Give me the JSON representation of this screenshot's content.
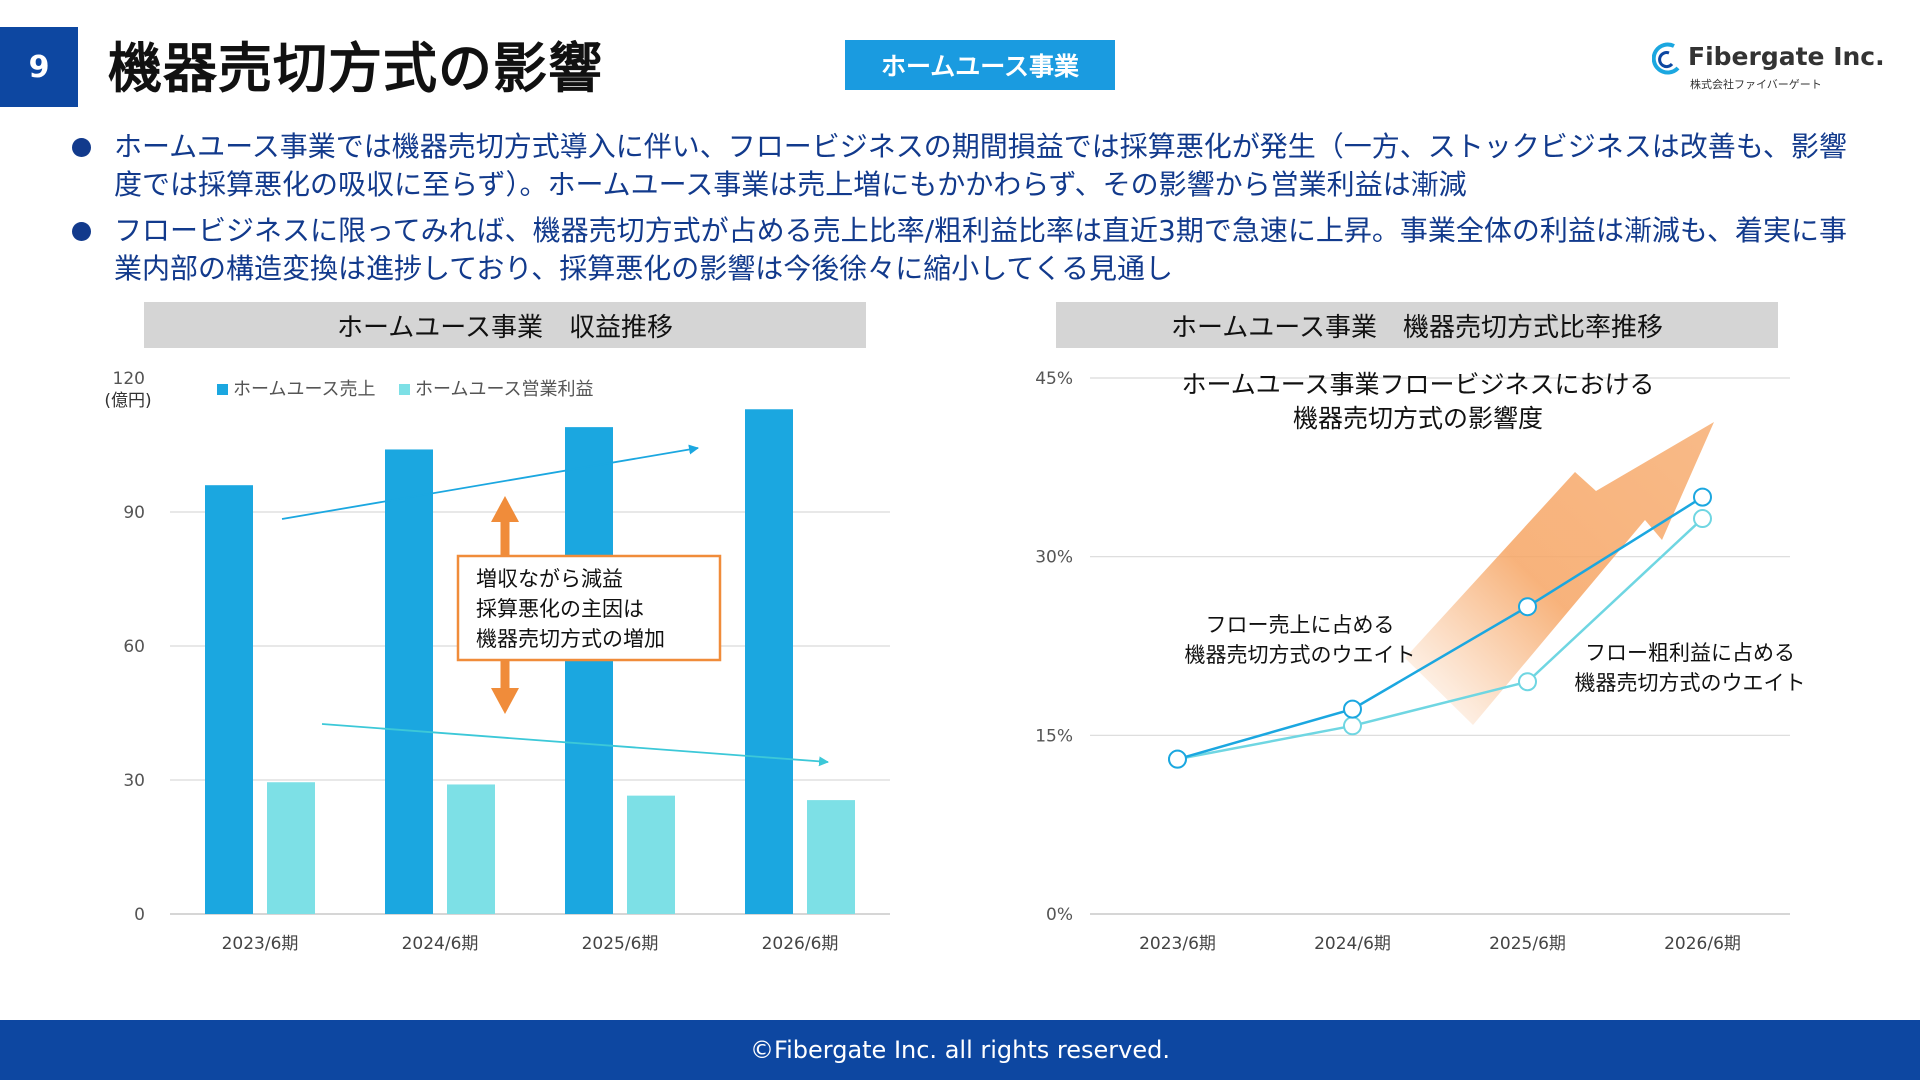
{
  "page": {
    "number": "9",
    "title": "機器売切方式の影響",
    "tag": "ホームユース事業",
    "logo_name": "Fibergate Inc.",
    "logo_sub": "株式会社ファイバーゲート",
    "bullets": [
      "ホームユース事業では機器売切方式導入に伴い、フロービジネスの期間損益では採算悪化が発生（一方、ストックビジネスは改善も、影響度では採算悪化の吸収に至らず）。ホームユース事業は売上増にもかかわらず、その影響から営業利益は漸減",
      "フロービジネスに限ってみれば、機器売切方式が占める売上比率/粗利益比率は直近3期で急速に上昇。事業全体の利益は漸減も、着実に事業内部の構造変換は進捗しており、採算悪化の影響は今後徐々に縮小してくる見通し"
    ],
    "footer": "©Fibergate Inc. all rights reserved.",
    "colors": {
      "navy": "#0d47a1",
      "sales": "#1ba7e0",
      "profit": "#7de0e6",
      "orange": "#f08c3a",
      "text_blue": "#123a8c"
    }
  },
  "chart_data": [
    {
      "type": "bar",
      "panel_title": "ホームユース事業　収益推移",
      "unit_label": "(億円)",
      "categories": [
        "2023/6期",
        "2024/6期",
        "2025/6期",
        "2026/6期"
      ],
      "series": [
        {
          "name": "ホームユース売上",
          "color": "#1ba7e0",
          "values": [
            96,
            104,
            109,
            113
          ]
        },
        {
          "name": "ホームユース営業利益",
          "color": "#7de0e6",
          "values": [
            29.5,
            29,
            26.5,
            25.5
          ]
        }
      ],
      "ylim": [
        0,
        120
      ],
      "yticks": [
        0,
        30,
        60,
        90,
        120
      ],
      "grid": true,
      "legend": "top",
      "annotation": {
        "lines": [
          "増収ながら減益",
          "採算悪化の主因は",
          "機器売切方式の増加"
        ]
      }
    },
    {
      "type": "line",
      "panel_title": "ホームユース事業　機器売切方式比率推移",
      "categories": [
        "2023/6期",
        "2024/6期",
        "2025/6期",
        "2026/6期"
      ],
      "series": [
        {
          "name": "フロー売上に占める機器売切方式のウエイト",
          "label_lines": [
            "フロー売上に占める",
            "機器売切方式のウエイト"
          ],
          "color": "#1ba7e0",
          "values": [
            13,
            17.2,
            25.8,
            35
          ]
        },
        {
          "name": "フロー粗利益に占める機器売切方式のウエイト",
          "label_lines": [
            "フロー粗利益に占める",
            "機器売切方式のウエイト"
          ],
          "color": "#6fd6e2",
          "values": [
            13,
            15.8,
            19.5,
            33.2
          ]
        }
      ],
      "ylim": [
        0,
        45
      ],
      "yticks": [
        0,
        15,
        30,
        45
      ],
      "ytick_labels": [
        "0%",
        "15%",
        "30%",
        "45%"
      ],
      "grid": true,
      "annotation": {
        "lines": [
          "ホームユース事業フロービジネスにおける",
          "機器売切方式の影響度"
        ]
      }
    }
  ]
}
